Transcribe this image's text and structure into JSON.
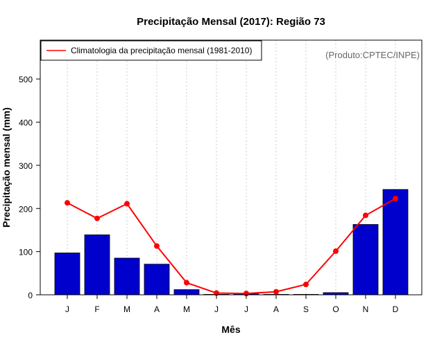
{
  "chart_data": {
    "type": "bar",
    "title": "Precipitação Mensal (2017): Região 73",
    "xlabel": "Mês",
    "ylabel": "Precipitação mensal (mm)",
    "ylim": [
      0,
      590
    ],
    "yticks": [
      0,
      100,
      200,
      300,
      400,
      500
    ],
    "categories": [
      "J",
      "F",
      "M",
      "A",
      "M",
      "J",
      "J",
      "A",
      "S",
      "O",
      "N",
      "D"
    ],
    "series": [
      {
        "name": "Precipitação mensal (2017)",
        "kind": "bar",
        "color": "#0000cc",
        "values": [
          97,
          139,
          85,
          71,
          12,
          1,
          2,
          1,
          1,
          5,
          163,
          244
        ]
      },
      {
        "name": "Climatologia da precipitação mensal (1981-2010)",
        "kind": "line",
        "color": "#ff0000",
        "values": [
          213,
          177,
          211,
          113,
          28,
          4,
          3,
          7,
          24,
          101,
          184,
          223
        ]
      }
    ],
    "legend": {
      "label": "Climatologia da precipitação mensal (1981-2010)",
      "position": "top-left"
    },
    "credit": "(Produto:CPTEC/INPE)",
    "grid": "vertical-dotted"
  }
}
